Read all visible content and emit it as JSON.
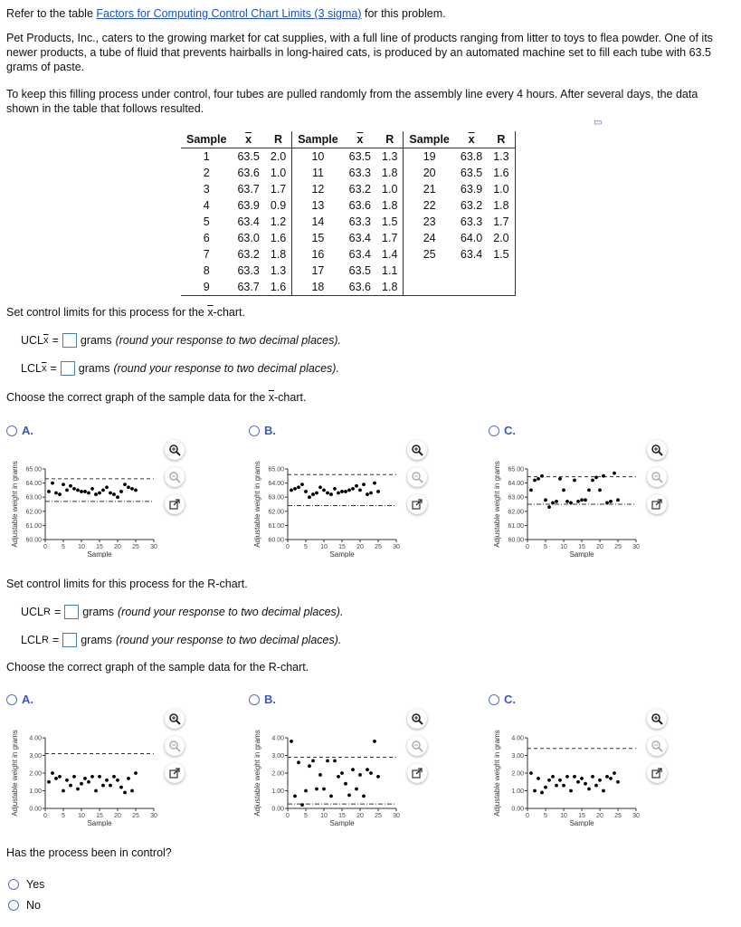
{
  "intro": {
    "prefix": "Refer to the table ",
    "link": "Factors for Computing Control Chart Limits (3 sigma)",
    "suffix": " for this problem."
  },
  "para1": "Pet Products, Inc., caters to the growing market for cat supplies, with a full line of products ranging from litter to toys to flea powder. One of its newer products, a tube of fluid that prevents hairballs in long-haired cats, is produced by an automated machine set to fill each tube with 63.5 grams of paste.",
  "para2": "To keep this filling process under control, four tubes are pulled randomly from the assembly line every 4 hours. After several days, the data shown in the table that follows resulted.",
  "table": {
    "headers": [
      "Sample",
      "x",
      "R"
    ],
    "rows": [
      [
        [
          "1",
          "63.5",
          "2.0"
        ],
        [
          "10",
          "63.5",
          "1.3"
        ],
        [
          "19",
          "63.8",
          "1.3"
        ]
      ],
      [
        [
          "2",
          "63.6",
          "1.0"
        ],
        [
          "11",
          "63.3",
          "1.8"
        ],
        [
          "20",
          "63.5",
          "1.6"
        ]
      ],
      [
        [
          "3",
          "63.7",
          "1.7"
        ],
        [
          "12",
          "63.2",
          "1.0"
        ],
        [
          "21",
          "63.9",
          "1.0"
        ]
      ],
      [
        [
          "4",
          "63.9",
          "0.9"
        ],
        [
          "13",
          "63.6",
          "1.8"
        ],
        [
          "22",
          "63.2",
          "1.8"
        ]
      ],
      [
        [
          "5",
          "63.4",
          "1.2"
        ],
        [
          "14",
          "63.3",
          "1.5"
        ],
        [
          "23",
          "63.3",
          "1.7"
        ]
      ],
      [
        [
          "6",
          "63.0",
          "1.6"
        ],
        [
          "15",
          "63.4",
          "1.7"
        ],
        [
          "24",
          "64.0",
          "2.0"
        ]
      ],
      [
        [
          "7",
          "63.2",
          "1.8"
        ],
        [
          "16",
          "63.4",
          "1.4"
        ],
        [
          "25",
          "63.4",
          "1.5"
        ]
      ],
      [
        [
          "8",
          "63.3",
          "1.3"
        ],
        [
          "17",
          "63.5",
          "1.1"
        ],
        null
      ],
      [
        [
          "9",
          "63.7",
          "1.6"
        ],
        [
          "18",
          "63.6",
          "1.8"
        ],
        null
      ]
    ]
  },
  "xsec": {
    "title_pre": "Set control limits for this process for the ",
    "x": "x",
    "title_post": "-chart.",
    "ucl": "UCL",
    "lcl": "LCL",
    "sub": "x",
    "eq": "=",
    "grams": "grams",
    "hint": "(round your response to two decimal places).",
    "choose_pre": "Choose the correct graph of the sample data for the ",
    "choose_post": "-chart."
  },
  "rsec": {
    "title": "Set control limits for this process for the R-chart.",
    "ucl": "UCL",
    "lcl": "LCL",
    "sub": "R",
    "eq": "=",
    "grams": "grams",
    "hint": "(round your response to two decimal places).",
    "choose": "Choose the correct graph of the sample data for the R-chart."
  },
  "options": [
    "A.",
    "B.",
    "C."
  ],
  "question": "Has the process been in control?",
  "answers": [
    "Yes",
    "No"
  ],
  "chart_data": [
    {
      "type": "scatter",
      "id": "xbar-A",
      "xlabel": "Sample",
      "ylabel": "Adjustable weight in grams",
      "xlim": [
        0,
        30
      ],
      "ylim": [
        60,
        65
      ],
      "xticks": [
        0,
        5,
        10,
        15,
        20,
        25,
        30
      ],
      "yticks": [
        "60.00",
        "61.00",
        "62.00",
        "63.00",
        "64.00",
        "65.00"
      ],
      "ucl": 64.3,
      "lcl": 62.7,
      "values": [
        63.4,
        64.0,
        63.3,
        63.2,
        63.9,
        63.5,
        63.8,
        63.6,
        63.5,
        63.4,
        63.4,
        63.3,
        63.6,
        63.2,
        63.3,
        63.5,
        63.7,
        63.3,
        63.2,
        63.0,
        63.4,
        63.9,
        63.7,
        63.6,
        63.5
      ]
    },
    {
      "type": "scatter",
      "id": "xbar-B",
      "xlabel": "Sample",
      "ylabel": "Adjustable weight in grams",
      "xlim": [
        0,
        30
      ],
      "ylim": [
        60,
        65
      ],
      "xticks": [
        0,
        5,
        10,
        15,
        20,
        25,
        30
      ],
      "yticks": [
        "60.00",
        "61.00",
        "62.00",
        "63.00",
        "64.00",
        "65.00"
      ],
      "ucl": 64.6,
      "lcl": 62.4,
      "values": [
        63.5,
        63.6,
        63.7,
        63.9,
        63.4,
        63.0,
        63.2,
        63.3,
        63.7,
        63.5,
        63.3,
        63.2,
        63.6,
        63.3,
        63.4,
        63.4,
        63.5,
        63.6,
        63.8,
        63.5,
        63.9,
        63.2,
        63.3,
        64.0,
        63.4
      ]
    },
    {
      "type": "scatter",
      "id": "xbar-C",
      "xlabel": "Sample",
      "ylabel": "Adjustable weight in grams",
      "xlim": [
        0,
        30
      ],
      "ylim": [
        60,
        65
      ],
      "xticks": [
        0,
        5,
        10,
        15,
        20,
        25,
        30
      ],
      "yticks": [
        "60.00",
        "61.00",
        "62.00",
        "63.00",
        "64.00",
        "65.00"
      ],
      "ucl": 64.45,
      "lcl": 62.5,
      "values": [
        63.5,
        64.2,
        64.3,
        64.5,
        62.8,
        62.3,
        62.6,
        62.7,
        64.3,
        63.5,
        62.7,
        62.6,
        64.2,
        62.7,
        62.8,
        62.8,
        63.5,
        64.2,
        64.4,
        63.5,
        64.5,
        62.6,
        62.7,
        64.7,
        62.8
      ]
    },
    {
      "type": "scatter",
      "id": "r-A",
      "xlabel": "Sample",
      "ylabel": "Adjustable weight in grams",
      "xlim": [
        0,
        30
      ],
      "ylim": [
        0,
        4
      ],
      "xticks": [
        0,
        5,
        10,
        15,
        20,
        25,
        30
      ],
      "yticks": [
        "0.00",
        "1.00",
        "2.00",
        "3.00",
        "4.00"
      ],
      "ucl": 3.1,
      "lcl": null,
      "values": [
        1.5,
        2.0,
        1.7,
        1.8,
        1.0,
        1.6,
        1.3,
        1.8,
        1.1,
        1.4,
        1.7,
        1.5,
        1.8,
        1.0,
        1.8,
        1.3,
        1.6,
        1.3,
        1.8,
        1.6,
        1.2,
        0.9,
        1.7,
        1.0,
        2.0
      ]
    },
    {
      "type": "scatter",
      "id": "r-B",
      "xlabel": "Sample",
      "ylabel": "Adjustable weight in grams",
      "xlim": [
        0,
        30
      ],
      "ylim": [
        0,
        4
      ],
      "xticks": [
        0,
        5,
        10,
        15,
        20,
        25,
        30
      ],
      "yticks": [
        "0.00",
        "1.00",
        "2.00",
        "3.00",
        "4.00"
      ],
      "ucl": 2.9,
      "lcl": 0.25,
      "values": [
        3.8,
        0.7,
        2.6,
        0.2,
        1.0,
        2.4,
        2.7,
        1.1,
        1.9,
        1.1,
        2.7,
        0.7,
        2.7,
        1.8,
        2.0,
        1.4,
        0.75,
        2.2,
        1.1,
        1.9,
        0.7,
        2.2,
        2.0,
        3.8,
        1.8
      ]
    },
    {
      "type": "scatter",
      "id": "r-C",
      "xlabel": "Sample",
      "ylabel": "Adjustable weight in grams",
      "xlim": [
        0,
        30
      ],
      "ylim": [
        0,
        4
      ],
      "xticks": [
        0,
        5,
        10,
        15,
        20,
        25,
        30
      ],
      "yticks": [
        "0.00",
        "1.00",
        "2.00",
        "3.00",
        "4.00"
      ],
      "ucl": 3.4,
      "lcl": null,
      "values": [
        2.0,
        1.0,
        1.7,
        0.9,
        1.2,
        1.6,
        1.8,
        1.3,
        1.6,
        1.3,
        1.8,
        1.0,
        1.8,
        1.5,
        1.7,
        1.4,
        1.1,
        1.8,
        1.3,
        1.6,
        1.0,
        1.8,
        1.7,
        2.0,
        1.5
      ]
    }
  ]
}
